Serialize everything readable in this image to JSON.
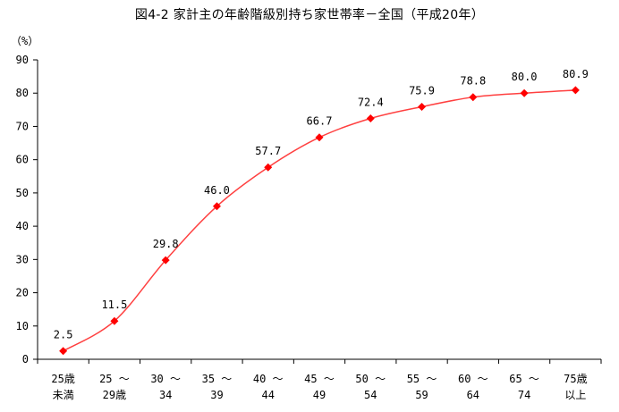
{
  "chart_data": {
    "type": "line",
    "title": "図4-2 家計主の年齢階級別持ち家世帯率－全国（平成20年）",
    "ylabel": "（%）",
    "xlabel": "",
    "ylim": [
      0,
      90
    ],
    "yticks": [
      0,
      10,
      20,
      30,
      40,
      50,
      60,
      70,
      80,
      90
    ],
    "grid": false,
    "categories": [
      [
        "25歳",
        "未満"
      ],
      [
        "25 ～",
        "29歳"
      ],
      [
        "30 ～",
        "34"
      ],
      [
        "35 ～",
        "39"
      ],
      [
        "40 ～",
        "44"
      ],
      [
        "45 ～",
        "49"
      ],
      [
        "50 ～",
        "54"
      ],
      [
        "55 ～",
        "59"
      ],
      [
        "60 ～",
        "64"
      ],
      [
        "65 ～",
        "74"
      ],
      [
        "75歳",
        "以上"
      ]
    ],
    "values": [
      2.5,
      11.5,
      29.8,
      46.0,
      57.7,
      66.7,
      72.4,
      75.9,
      78.8,
      80.0,
      80.9
    ],
    "data_labels": [
      "2.5",
      "11.5",
      "29.8",
      "46.0",
      "57.7",
      "66.7",
      "72.4",
      "75.9",
      "78.8",
      "80.0",
      "80.9"
    ],
    "colors": {
      "line": "#ff4040",
      "marker": "#ff0000",
      "axis": "#000000"
    }
  }
}
